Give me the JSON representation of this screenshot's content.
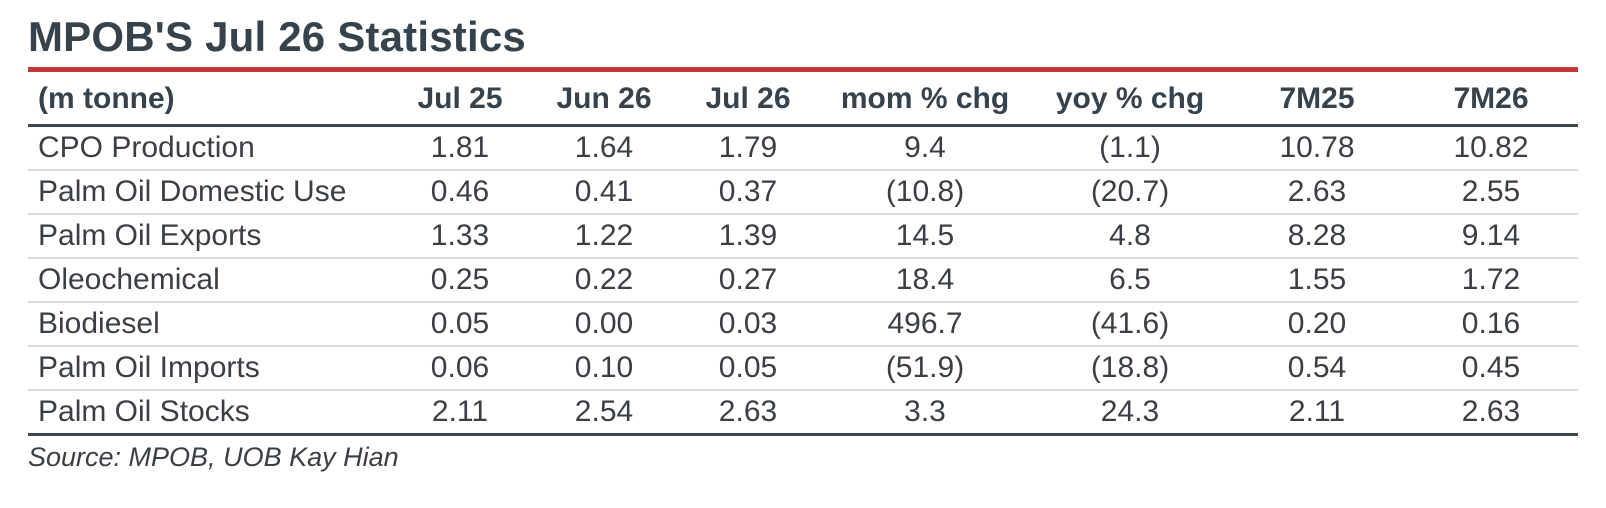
{
  "title": "MPOB'S Jul 26 Statistics",
  "columns": [
    "(m tonne)",
    "Jul 25",
    "Jun 26",
    "Jul 26",
    "mom % chg",
    "yoy % chg",
    "7M25",
    "7M26"
  ],
  "rows": [
    {
      "label": "CPO Production",
      "values": [
        "1.81",
        "1.64",
        "1.79",
        "9.4",
        "(1.1)",
        "10.78",
        "10.82"
      ]
    },
    {
      "label": "Palm Oil Domestic Use",
      "values": [
        "0.46",
        "0.41",
        "0.37",
        "(10.8)",
        "(20.7)",
        "2.63",
        "2.55"
      ]
    },
    {
      "label": "Palm Oil Exports",
      "values": [
        "1.33",
        "1.22",
        "1.39",
        "14.5",
        "4.8",
        "8.28",
        "9.14"
      ]
    },
    {
      "label": "Oleochemical",
      "values": [
        "0.25",
        "0.22",
        "0.27",
        "18.4",
        "6.5",
        "1.55",
        "1.72"
      ]
    },
    {
      "label": "Biodiesel",
      "values": [
        "0.05",
        "0.00",
        "0.03",
        "496.7",
        "(41.6)",
        "0.20",
        "0.16"
      ]
    },
    {
      "label": "Palm Oil Imports",
      "values": [
        "0.06",
        "0.10",
        "0.05",
        "(51.9)",
        "(18.8)",
        "0.54",
        "0.45"
      ]
    },
    {
      "label": "Palm Oil Stocks",
      "values": [
        "2.11",
        "2.54",
        "2.63",
        "3.3",
        "24.3",
        "2.11",
        "2.63"
      ]
    }
  ],
  "source": "Source: MPOB, UOB Kay Hian",
  "colors": {
    "title": "#36424c",
    "accent_rule": "#c0393b",
    "rule": "#3c4650",
    "row_divider": "#d8dadc"
  }
}
